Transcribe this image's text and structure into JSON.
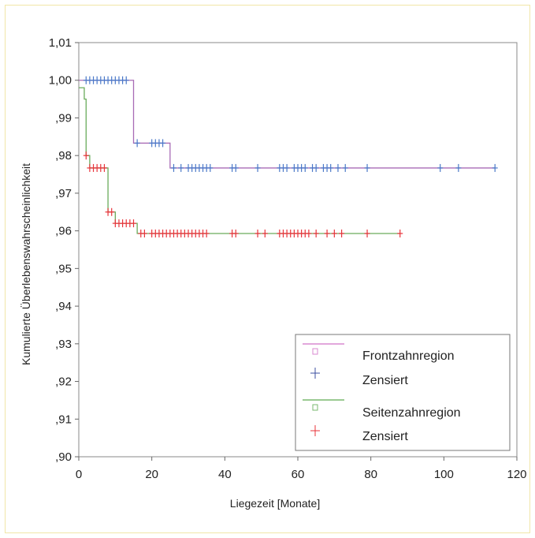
{
  "chart_data": {
    "type": "line",
    "subtype": "kaplan-meier",
    "title": "",
    "xlabel": "Liegezeit [Monate]",
    "ylabel": "Kumulierte Überlebenswahrscheinlichkeit",
    "xlim": [
      0,
      120
    ],
    "ylim": [
      0.9,
      1.01
    ],
    "xticks": [
      0,
      20,
      40,
      60,
      80,
      100,
      120
    ],
    "xtick_labels": [
      "0",
      "20",
      "40",
      "60",
      "80",
      "100",
      "120"
    ],
    "yticks": [
      0.9,
      0.91,
      0.92,
      0.93,
      0.94,
      0.95,
      0.96,
      0.97,
      0.98,
      0.99,
      1.0,
      1.01
    ],
    "ytick_labels": [
      ",90",
      ",91",
      ",92",
      ",93",
      ",94",
      ",95",
      ",96",
      ",97",
      ",98",
      ",99",
      "1,00",
      "1,01"
    ],
    "grid": false,
    "legend_position": "bottom-right",
    "legend": [
      {
        "label": "Frontzahnregion",
        "marker": "square",
        "color": "#d98ad0"
      },
      {
        "label": "Zensiert",
        "marker": "plus",
        "color": "#3c4fa0"
      },
      {
        "label": "Seitenzahnregion",
        "marker": "square",
        "color": "#78b96f"
      },
      {
        "label": "Zensiert",
        "marker": "plus",
        "color": "#e8333a"
      }
    ],
    "series": [
      {
        "line_color": "#a96cb6",
        "censor_color": "#4a78c8",
        "steps": [
          [
            0,
            1.0
          ],
          [
            15,
            0.9833
          ],
          [
            25,
            0.9767
          ],
          [
            114,
            0.9767
          ]
        ],
        "censored": [
          [
            2,
            1.0
          ],
          [
            3,
            1.0
          ],
          [
            4,
            1.0
          ],
          [
            5,
            1.0
          ],
          [
            6,
            1.0
          ],
          [
            7,
            1.0
          ],
          [
            8,
            1.0
          ],
          [
            9,
            1.0
          ],
          [
            10,
            1.0
          ],
          [
            11,
            1.0
          ],
          [
            12,
            1.0
          ],
          [
            13,
            1.0
          ],
          [
            16,
            0.9833
          ],
          [
            20,
            0.9833
          ],
          [
            21,
            0.9833
          ],
          [
            22,
            0.9833
          ],
          [
            23,
            0.9833
          ],
          [
            26,
            0.9767
          ],
          [
            28,
            0.9767
          ],
          [
            30,
            0.9767
          ],
          [
            31,
            0.9767
          ],
          [
            32,
            0.9767
          ],
          [
            33,
            0.9767
          ],
          [
            34,
            0.9767
          ],
          [
            35,
            0.9767
          ],
          [
            36,
            0.9767
          ],
          [
            42,
            0.9767
          ],
          [
            43,
            0.9767
          ],
          [
            49,
            0.9767
          ],
          [
            55,
            0.9767
          ],
          [
            56,
            0.9767
          ],
          [
            57,
            0.9767
          ],
          [
            59,
            0.9767
          ],
          [
            60,
            0.9767
          ],
          [
            61,
            0.9767
          ],
          [
            62,
            0.9767
          ],
          [
            64,
            0.9767
          ],
          [
            65,
            0.9767
          ],
          [
            67,
            0.9767
          ],
          [
            68,
            0.9767
          ],
          [
            69,
            0.9767
          ],
          [
            71,
            0.9767
          ],
          [
            73,
            0.9767
          ],
          [
            79,
            0.9767
          ],
          [
            99,
            0.9767
          ],
          [
            104,
            0.9767
          ],
          [
            114,
            0.9767
          ]
        ]
      },
      {
        "line_color": "#6aac5c",
        "censor_color": "#e8333a",
        "steps": [
          [
            0,
            0.998
          ],
          [
            1.5,
            0.995
          ],
          [
            2,
            0.98
          ],
          [
            3,
            0.9767
          ],
          [
            8,
            0.965
          ],
          [
            10,
            0.962
          ],
          [
            16,
            0.9593
          ],
          [
            88,
            0.9593
          ]
        ],
        "censored": [
          [
            2,
            0.98
          ],
          [
            3,
            0.9767
          ],
          [
            4,
            0.9767
          ],
          [
            5,
            0.9767
          ],
          [
            6,
            0.9767
          ],
          [
            7,
            0.9767
          ],
          [
            8,
            0.965
          ],
          [
            9,
            0.965
          ],
          [
            10,
            0.962
          ],
          [
            11,
            0.962
          ],
          [
            12,
            0.962
          ],
          [
            13,
            0.962
          ],
          [
            14,
            0.962
          ],
          [
            15,
            0.962
          ],
          [
            17,
            0.9593
          ],
          [
            18,
            0.9593
          ],
          [
            20,
            0.9593
          ],
          [
            21,
            0.9593
          ],
          [
            22,
            0.9593
          ],
          [
            23,
            0.9593
          ],
          [
            24,
            0.9593
          ],
          [
            25,
            0.9593
          ],
          [
            26,
            0.9593
          ],
          [
            27,
            0.9593
          ],
          [
            28,
            0.9593
          ],
          [
            29,
            0.9593
          ],
          [
            30,
            0.9593
          ],
          [
            31,
            0.9593
          ],
          [
            32,
            0.9593
          ],
          [
            33,
            0.9593
          ],
          [
            34,
            0.9593
          ],
          [
            35,
            0.9593
          ],
          [
            42,
            0.9593
          ],
          [
            43,
            0.9593
          ],
          [
            49,
            0.9593
          ],
          [
            51,
            0.9593
          ],
          [
            55,
            0.9593
          ],
          [
            56,
            0.9593
          ],
          [
            57,
            0.9593
          ],
          [
            58,
            0.9593
          ],
          [
            59,
            0.9593
          ],
          [
            60,
            0.9593
          ],
          [
            61,
            0.9593
          ],
          [
            62,
            0.9593
          ],
          [
            63,
            0.9593
          ],
          [
            65,
            0.9593
          ],
          [
            68,
            0.9593
          ],
          [
            70,
            0.9593
          ],
          [
            72,
            0.9593
          ],
          [
            79,
            0.9593
          ],
          [
            88,
            0.9593
          ]
        ]
      }
    ]
  }
}
